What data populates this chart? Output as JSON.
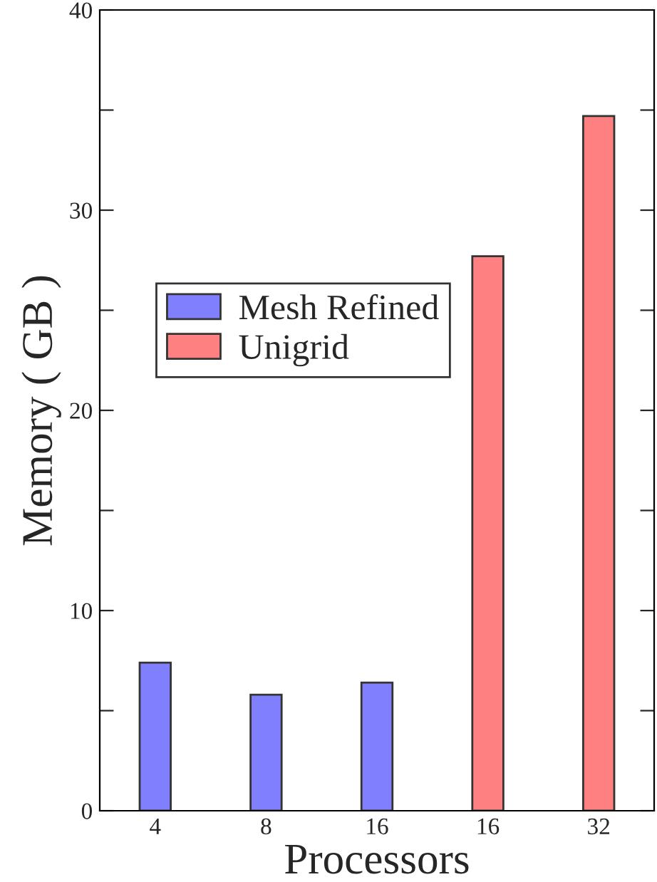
{
  "chart_data": {
    "type": "bar",
    "xlabel": "Processors",
    "ylabel": "Memory ( GB )",
    "categories": [
      "4",
      "8",
      "16",
      "16",
      "32"
    ],
    "series": [
      {
        "name": "Mesh Refined",
        "color": "#8080ff",
        "values": [
          7.4,
          5.8,
          6.4,
          null,
          null
        ]
      },
      {
        "name": "Unigrid",
        "color": "#ff8080",
        "values": [
          null,
          null,
          null,
          27.7,
          34.7
        ]
      }
    ],
    "ylim": [
      0,
      40
    ],
    "yticks": [
      0,
      {
        "value": 5,
        "label": null
      },
      10,
      {
        "value": 15,
        "label": null
      },
      20,
      {
        "value": 25,
        "label": null
      },
      30,
      {
        "value": 35,
        "label": null
      },
      40
    ],
    "grid": false,
    "legend": "left"
  }
}
